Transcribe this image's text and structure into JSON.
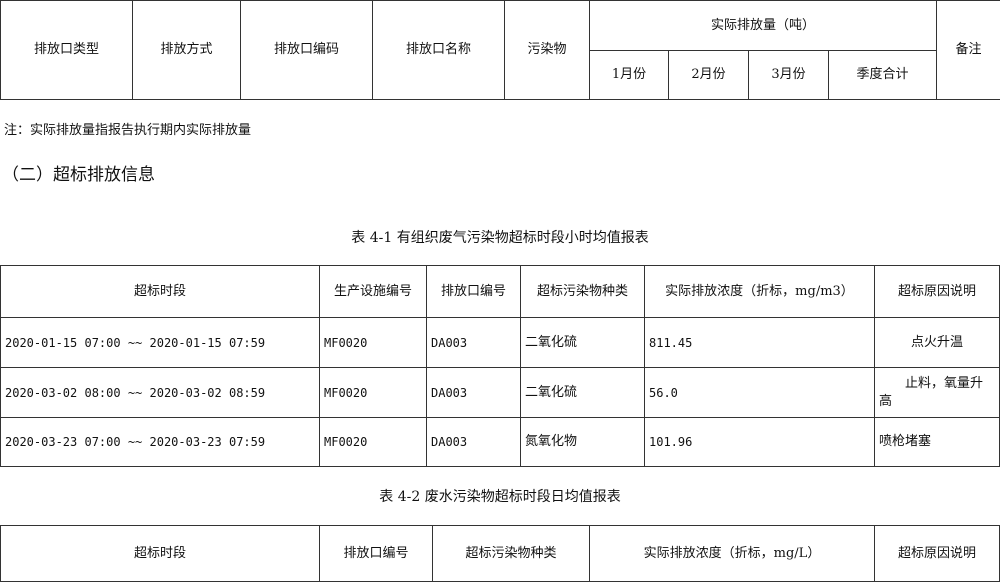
{
  "table_top": {
    "headers": [
      "排放口类型",
      "排放方式",
      "排放口编码",
      "排放口名称",
      "污染物"
    ],
    "group_header": "实际排放量（吨）",
    "sub_headers": [
      "1月份",
      "2月份",
      "3月份",
      "季度合计"
    ],
    "remark_header": "备注"
  },
  "note": "注：实际排放量指报告执行期内实际排放量",
  "section_heading": "（二）超标排放信息",
  "table_4_1": {
    "caption": "表 4-1 有组织废气污染物超标时段小时均值报表",
    "headers": [
      "超标时段",
      "生产设施编号",
      "排放口编号",
      "超标污染物种类",
      "实际排放浓度（折标，mg/m3）",
      "超标原因说明"
    ],
    "rows": [
      [
        "2020-01-15 07:00 ~~ 2020-01-15 07:59",
        "MF0020",
        "DA003",
        "二氧化硫",
        "811.45",
        "点火升温"
      ],
      [
        "2020-03-02 08:00 ~~ 2020-03-02 08:59",
        "MF0020",
        "DA003",
        "二氧化硫",
        "56.0",
        "止料，氧量升高"
      ],
      [
        "2020-03-23 07:00 ~~ 2020-03-23 07:59",
        "MF0020",
        "DA003",
        "氮氧化物",
        "101.96",
        "喷枪堵塞"
      ]
    ]
  },
  "table_4_2": {
    "caption": "表 4-2 废水污染物超标时段日均值报表",
    "headers": [
      "超标时段",
      "排放口编号",
      "超标污染物种类",
      "实际排放浓度（折标，mg/L）",
      "超标原因说明"
    ]
  }
}
